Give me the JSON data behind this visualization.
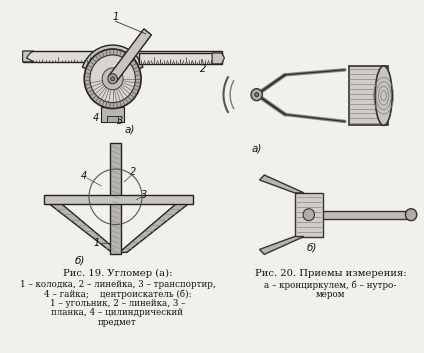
{
  "bg_color": "#f2f0eb",
  "title_left": "Рис. 19. Угломер (а):",
  "caption_left_lines": [
    "1 – колодка, 2 – линейка, 3 – транспортир,",
    "4 – гайка;    центроискатель (б):",
    "1 – угольник, 2 – линейка, 3 –",
    "планка, 4 – цилиндрический",
    "предмет"
  ],
  "title_right": "Рис. 20. Приемы измерения:",
  "caption_right_lines": [
    "а – кронциркулем, б – нутро-",
    "мером"
  ]
}
